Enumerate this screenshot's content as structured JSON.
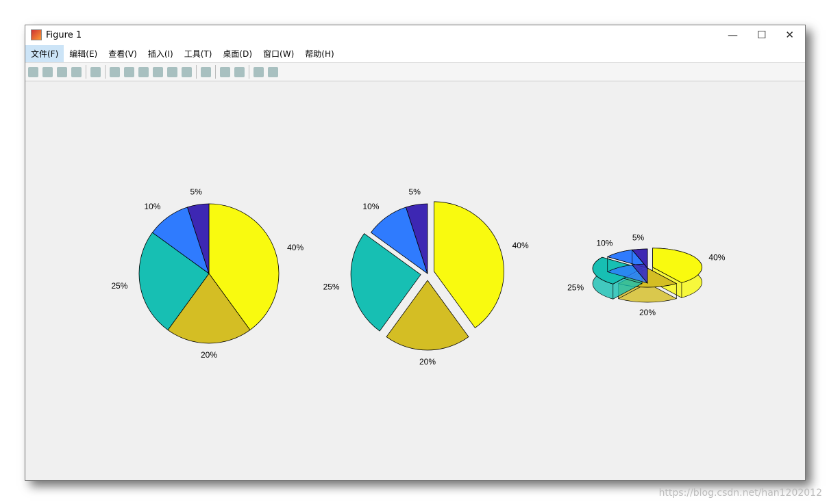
{
  "window": {
    "title": "Figure 1",
    "menu": [
      "文件(F)",
      "编辑(E)",
      "查看(V)",
      "插入(I)",
      "工具(T)",
      "桌面(D)",
      "窗口(W)",
      "帮助(H)"
    ]
  },
  "watermark": "https://blog.csdn.net/han1202012",
  "chart_data": [
    {
      "type": "pie",
      "values": [
        40,
        20,
        25,
        10,
        5
      ],
      "value_labels": [
        "40%",
        "20%",
        "25%",
        "10%",
        "5%"
      ],
      "colors": [
        "#f9fa0f",
        "#d4be24",
        "#17bfb3",
        "#2f7bfe",
        "#3d27b3"
      ],
      "explode": [
        false,
        false,
        false,
        false,
        false
      ]
    },
    {
      "type": "pie",
      "values": [
        40,
        20,
        25,
        10,
        5
      ],
      "value_labels": [
        "40%",
        "20%",
        "25%",
        "10%",
        "5%"
      ],
      "colors": [
        "#f9fa0f",
        "#d4be24",
        "#17bfb3",
        "#2f7bfe",
        "#3d27b3"
      ],
      "explode": [
        true,
        true,
        true,
        false,
        false
      ]
    },
    {
      "type": "pie3",
      "values": [
        40,
        20,
        25,
        10,
        5
      ],
      "value_labels": [
        "40%",
        "20%",
        "25%",
        "10%",
        "5%"
      ],
      "colors": [
        "#f9fa0f",
        "#d4be24",
        "#17bfb3",
        "#2f7bfe",
        "#3d27b3"
      ],
      "explode": [
        true,
        false,
        true,
        false,
        false
      ]
    }
  ]
}
